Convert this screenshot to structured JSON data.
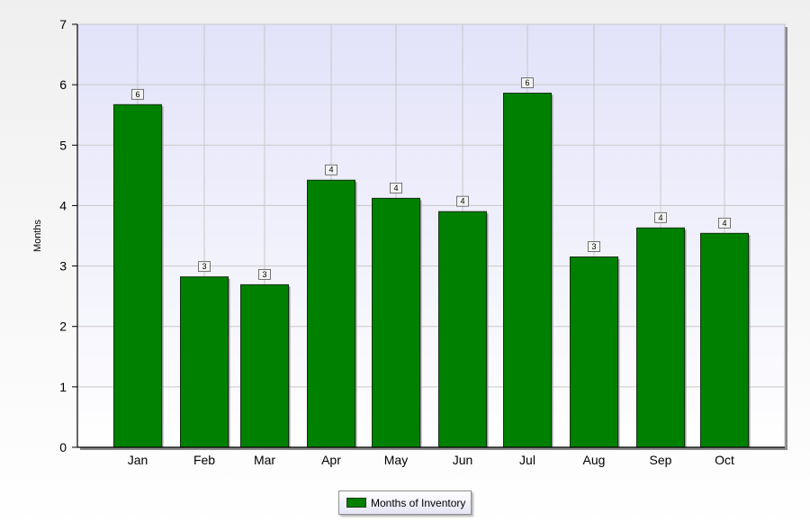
{
  "chart_data": {
    "type": "bar",
    "categories": [
      "Jan",
      "Feb",
      "Mar",
      "Apr",
      "May",
      "Jun",
      "Jul",
      "Aug",
      "Sep",
      "Oct"
    ],
    "series": [
      {
        "name": "Months of Inventory",
        "values": [
          5.67,
          2.82,
          2.69,
          4.42,
          4.12,
          3.9,
          5.86,
          3.15,
          3.63,
          3.54
        ],
        "data_labels": [
          "6",
          "3",
          "3",
          "4",
          "4",
          "4",
          "6",
          "3",
          "4",
          "4"
        ]
      }
    ],
    "ylabel": "Months",
    "xlabel": "",
    "ylim": [
      0,
      7
    ],
    "yticks": [
      "0",
      "1",
      "2",
      "3",
      "4",
      "5",
      "6",
      "7"
    ],
    "grid": true,
    "legend_position": "bottom",
    "colors": {
      "bar": "#008000",
      "bar_stroke": "#0e300e",
      "plot_bg_top": "#e2e2f9",
      "plot_bg_bottom": "#ffffff",
      "grid": "#c8c8c8"
    }
  }
}
